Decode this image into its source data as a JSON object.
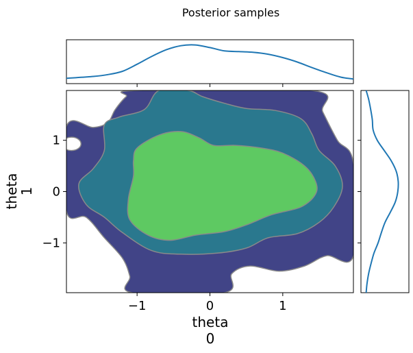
{
  "chart_data": {
    "type": "contour",
    "title": "Posterior samples",
    "xlabel_line1": "theta",
    "xlabel_line2": "0",
    "ylabel_line1": "theta",
    "ylabel_line2": "1",
    "xlim": [
      -1.97,
      1.97
    ],
    "ylim": [
      -1.97,
      1.97
    ],
    "xticks": [
      -1,
      0,
      1
    ],
    "yticks": [
      1,
      0,
      -1
    ],
    "xtick_labels": [
      "−1",
      "0",
      "1"
    ],
    "ytick_labels": [
      "1",
      "0",
      "−1"
    ],
    "colors": {
      "outer": "#414487",
      "middle": "#2a788e",
      "inner": "#5ec962",
      "contour_line": "#8a8a8a",
      "marginal_line": "#1f77b4"
    },
    "contours": {
      "outer": [
        [
          -1.97,
          1.27
        ],
        [
          -1.6,
          1.25
        ],
        [
          -1.4,
          1.35
        ],
        [
          -1.3,
          1.6
        ],
        [
          -1.15,
          1.85
        ],
        [
          -1.0,
          1.97
        ],
        [
          1.4,
          1.97
        ],
        [
          1.55,
          1.55
        ],
        [
          1.75,
          1.0
        ],
        [
          1.97,
          0.55
        ],
        [
          1.97,
          -1.25
        ],
        [
          1.6,
          -1.25
        ],
        [
          1.3,
          -1.45
        ],
        [
          0.95,
          -1.55
        ],
        [
          0.55,
          -1.45
        ],
        [
          0.3,
          -1.6
        ],
        [
          0.2,
          -1.97
        ],
        [
          -1.07,
          -1.97
        ],
        [
          -1.1,
          -1.65
        ],
        [
          -1.2,
          -1.3
        ],
        [
          -1.45,
          -0.9
        ],
        [
          -1.7,
          -0.5
        ],
        [
          -1.97,
          -0.38
        ]
      ],
      "hole": {
        "cx": -1.9,
        "cy": 0.93,
        "rx": 0.13,
        "ry": 0.13
      },
      "middle": [
        [
          -1.45,
          1.3
        ],
        [
          -1.25,
          1.45
        ],
        [
          -0.9,
          1.6
        ],
        [
          -0.7,
          1.97
        ],
        [
          -0.3,
          1.97
        ],
        [
          -0.1,
          1.85
        ],
        [
          0.2,
          1.72
        ],
        [
          0.5,
          1.62
        ],
        [
          0.9,
          1.58
        ],
        [
          1.25,
          1.42
        ],
        [
          1.4,
          1.12
        ],
        [
          1.5,
          0.8
        ],
        [
          1.72,
          0.5
        ],
        [
          1.82,
          0.1
        ],
        [
          1.7,
          -0.3
        ],
        [
          1.5,
          -0.6
        ],
        [
          1.2,
          -0.82
        ],
        [
          0.8,
          -0.9
        ],
        [
          0.5,
          -1.1
        ],
        [
          0.1,
          -1.2
        ],
        [
          -0.4,
          -1.22
        ],
        [
          -0.8,
          -1.15
        ],
        [
          -1.2,
          -0.8
        ],
        [
          -1.45,
          -0.5
        ],
        [
          -1.7,
          -0.25
        ],
        [
          -1.8,
          0.15
        ],
        [
          -1.6,
          0.45
        ],
        [
          -1.45,
          0.8
        ]
      ],
      "inner": [
        [
          -1.0,
          0.85
        ],
        [
          -0.7,
          1.1
        ],
        [
          -0.4,
          1.17
        ],
        [
          -0.15,
          1.05
        ],
        [
          0.05,
          0.9
        ],
        [
          0.35,
          0.9
        ],
        [
          0.7,
          0.85
        ],
        [
          1.0,
          0.75
        ],
        [
          1.3,
          0.5
        ],
        [
          1.45,
          0.2
        ],
        [
          1.45,
          -0.05
        ],
        [
          1.25,
          -0.3
        ],
        [
          0.85,
          -0.45
        ],
        [
          0.5,
          -0.65
        ],
        [
          0.2,
          -0.78
        ],
        [
          -0.2,
          -0.85
        ],
        [
          -0.55,
          -0.95
        ],
        [
          -0.85,
          -0.85
        ],
        [
          -1.1,
          -0.55
        ],
        [
          -1.12,
          -0.15
        ],
        [
          -1.05,
          0.3
        ],
        [
          -1.05,
          0.6
        ]
      ]
    },
    "marginal_x": {
      "x": [
        -1.97,
        -1.6,
        -1.4,
        -1.2,
        -1.0,
        -0.8,
        -0.6,
        -0.4,
        -0.2,
        0.0,
        0.2,
        0.4,
        0.6,
        0.8,
        1.0,
        1.2,
        1.4,
        1.6,
        1.8,
        1.97
      ],
      "y": [
        0.07,
        0.12,
        0.17,
        0.26,
        0.45,
        0.66,
        0.84,
        0.95,
        0.97,
        0.9,
        0.81,
        0.79,
        0.77,
        0.72,
        0.63,
        0.51,
        0.36,
        0.22,
        0.1,
        0.05
      ]
    },
    "marginal_y": {
      "y": [
        1.97,
        1.8,
        1.6,
        1.4,
        1.2,
        1.0,
        0.8,
        0.6,
        0.4,
        0.2,
        0.0,
        -0.2,
        -0.4,
        -0.6,
        -0.8,
        -1.0,
        -1.2,
        -1.4,
        -1.6,
        -1.8,
        -1.97
      ],
      "x": [
        0.06,
        0.12,
        0.17,
        0.21,
        0.23,
        0.33,
        0.5,
        0.67,
        0.79,
        0.84,
        0.83,
        0.77,
        0.65,
        0.52,
        0.43,
        0.35,
        0.25,
        0.18,
        0.12,
        0.08,
        0.06
      ]
    }
  }
}
